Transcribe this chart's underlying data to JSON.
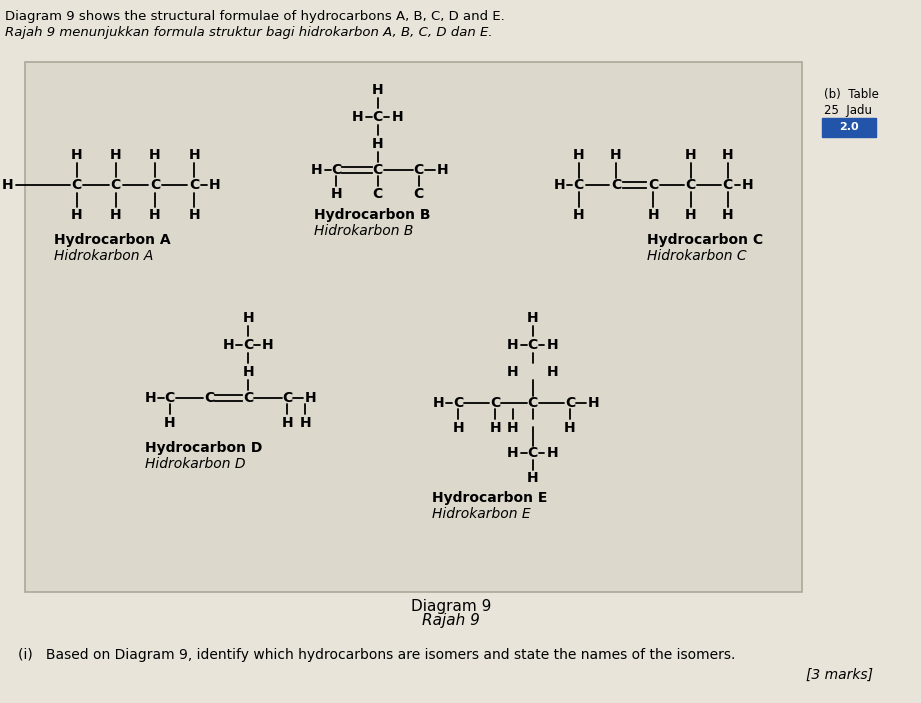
{
  "title_line1": "Diagram 9 shows the structural formulae of hydrocarbons A, B, C, D and E.",
  "title_line2": "Rajah 9 menunjukkan formula struktur bagi hidrokarbon A, B, C, D dan E.",
  "diagram_label": "Diagram 9",
  "diagram_label2": "Rajah 9",
  "question_text": "(i)   Based on Diagram 9, identify which hydrocarbons are isomers and state the names of the isomers.",
  "marks_text": "[3 marks]",
  "side_b": "(b)  Table",
  "side_25": "25  Jadu",
  "side_20": "2.0",
  "bg_color": "#e8e4da",
  "box_bg_color": "#ddd8cc",
  "box_border": "#aaa898",
  "text_color": "#111111",
  "hydrocarbon_A_label": "Hydrocarbon A",
  "hydrocarbon_A_label2": "Hidrokarbon A",
  "hydrocarbon_B_label": "Hydrocarbon B",
  "hydrocarbon_B_label2": "Hidrokarbon B",
  "hydrocarbon_C_label": "Hydrocarbon C",
  "hydrocarbon_C_label2": "Hidrokarbon C",
  "hydrocarbon_D_label": "Hydrocarbon D",
  "hydrocarbon_D_label2": "Hidrokarbon D",
  "hydrocarbon_E_label": "Hydrocarbon E",
  "hydrocarbon_E_label2": "Hidrokarbon E",
  "figsize": [
    9.21,
    7.03
  ],
  "dpi": 100
}
